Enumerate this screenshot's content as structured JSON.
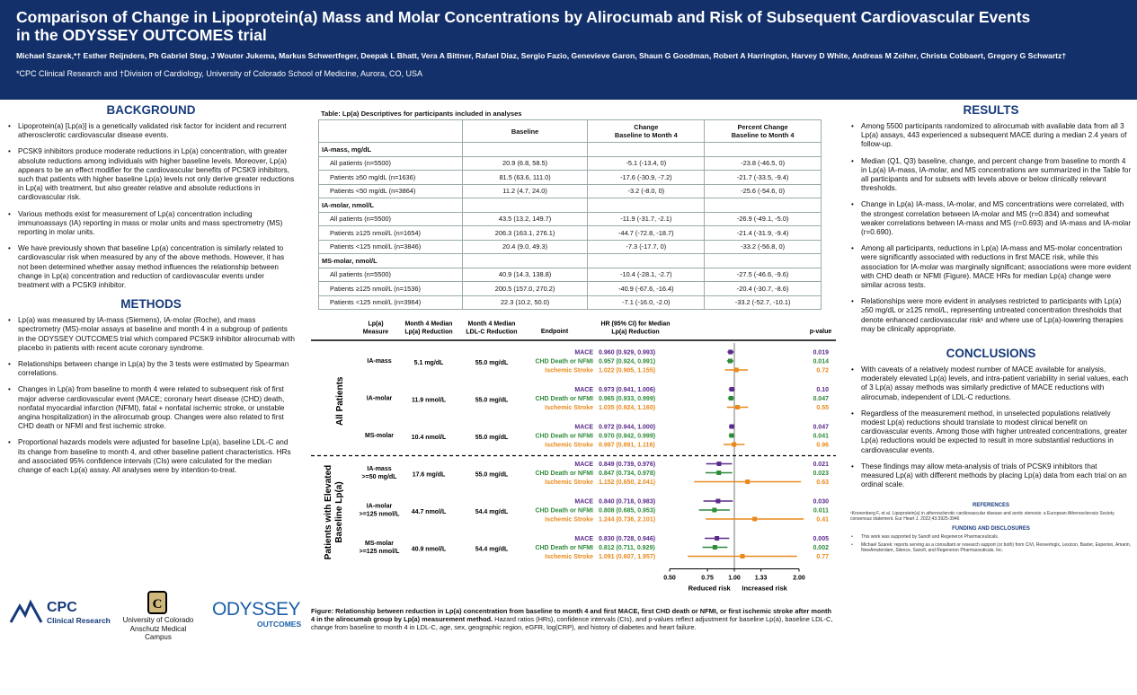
{
  "header": {
    "title_line1": "Comparison of Change in Lipoprotein(a) Mass and Molar Concentrations by Alirocumab and Risk of Subsequent Cardiovascular Events",
    "title_line2": "in the ODYSSEY OUTCOMES trial",
    "authors": "Michael Szarek,*† Esther Reijnders, Ph Gabriel Steg, J Wouter Jukema, Markus Schwertfeger, Deepak L Bhatt, Vera A Bittner, Rafael Diaz, Sergio Fazio, Genevieve Garon, Shaun G Goodman, Robert A Harrington, Harvey D White, Andreas M Zeiher, Christa Cobbaert, Gregory G Schwartz†",
    "affiliation": "*CPC Clinical Research and †Division of Cardiology, University of Colorado School of Medicine, Aurora, CO, USA"
  },
  "background": {
    "title": "BACKGROUND",
    "bullets": [
      "Lipoprotein(a) [Lp(a)] is a genetically validated risk factor for incident and recurrent atherosclerotic cardiovascular disease events.",
      "PCSK9 inhibitors produce moderate reductions in Lp(a) concentration, with greater absolute reductions among individuals with higher baseline levels. Moreover, Lp(a) appears to be an effect modifier for the cardiovascular benefits of PCSK9 inhibitors, such that patients with higher baseline Lp(a) levels not only derive greater reductions in Lp(a) with treatment, but also greater relative and absolute reductions in cardiovascular risk.",
      "Various methods exist for measurement of Lp(a) concentration including immunoassays (IA) reporting in mass or molar units and mass spectrometry (MS) reporting in molar units.",
      "We have previously shown that baseline Lp(a) concentration is similarly related to cardiovascular risk when measured by any of the above methods. However, it has not been determined whether assay method influences the relationship between change in Lp(a) concentration and reduction of cardiovascular events under treatment with a PCSK9 inhibitor."
    ]
  },
  "methods": {
    "title": "METHODS",
    "bullets": [
      "Lp(a) was measured by IA-mass (Siemens), IA-molar (Roche), and mass spectrometry (MS)-molar assays at baseline and month 4 in a subgroup of patients in the ODYSSEY OUTCOMES trial which compared PCSK9 inhibitor alirocumab with placebo in patients with recent acute coronary syndrome.",
      "Relationships between change in Lp(a) by the 3 tests were estimated by Spearman correlations.",
      "Changes in Lp(a) from baseline to month 4 were related to subsequent risk of first major adverse cardiovascular event (MACE; coronary heart disease (CHD) death, nonfatal myocardial infarction (NFMI), fatal + nonfatal ischemic stroke, or unstable angina hospitalization) in the alirocumab group. Changes were also related to first CHD death or NFMI and first ischemic stroke.",
      "Proportional hazards models were adjusted for baseline Lp(a), baseline LDL-C and its change from baseline to month 4, and other baseline patient characteristics. HRs and associated 95% confidence intervals (CIs) were calculated for the median change of each Lp(a) assay. All analyses were by intention-to-treat."
    ]
  },
  "logos": {
    "cpc": "CPC",
    "cpc_sub": "Clinical Research",
    "cu1": "University of Colorado",
    "cu2": "Anschutz Medical Campus",
    "odyssey": "ODYSSEY",
    "odyssey_sub": "OUTCOMES"
  },
  "table": {
    "title": "Table: Lp(a) Descriptives for participants included in analyses",
    "headers": [
      "",
      "Baseline",
      "Change\nBaseline to Month 4",
      "Percent Change\nBaseline to Month 4"
    ],
    "rows": [
      {
        "type": "grp",
        "label": "IA-mass, mg/dL"
      },
      {
        "type": "row",
        "label": "All patients (n=5500)",
        "baseline": "20.9 (6.8, 58.5)",
        "change": "-5.1 (-13.4, 0)",
        "pct": "-23.8 (-46.5, 0)"
      },
      {
        "type": "row",
        "label": "Patients ≥50 mg/dL (n=1636)",
        "baseline": "81.5 (63.6, 111.0)",
        "change": "-17.6 (-30.9, -7.2)",
        "pct": "-21.7 (-33.5, -9.4)"
      },
      {
        "type": "row",
        "label": "Patients <50 mg/dL (n=3864)",
        "baseline": "11.2 (4.7, 24.0)",
        "change": "-3.2 (-8.0, 0)",
        "pct": "-25.6 (-54.6, 0)"
      },
      {
        "type": "grp",
        "label": "IA-molar, nmol/L"
      },
      {
        "type": "row",
        "label": "All patients (n=5500)",
        "baseline": "43.5 (13.2, 149.7)",
        "change": "-11.9 (-31.7, -2.1)",
        "pct": "-26.9 (-49.1, -5.0)"
      },
      {
        "type": "row",
        "label": "Patients ≥125 nmol/L (n=1654)",
        "baseline": "206.3 (163.1, 276.1)",
        "change": "-44.7 (-72.8, -18.7)",
        "pct": "-21.4 (-31.9, -9.4)"
      },
      {
        "type": "row",
        "label": "Patients <125 nmol/L (n=3846)",
        "baseline": "20.4 (9.0, 49.3)",
        "change": "-7.3 (-17.7, 0)",
        "pct": "-33.2 (-56.8, 0)"
      },
      {
        "type": "grp",
        "label": "MS-molar, nmol/L"
      },
      {
        "type": "row",
        "label": "All patients (n=5500)",
        "baseline": "40.9 (14.3, 138.8)",
        "change": "-10.4 (-28.1, -2.7)",
        "pct": "-27.5 (-46.6, -9.6)"
      },
      {
        "type": "row",
        "label": "Patients ≥125 nmol/L (n=1536)",
        "baseline": "200.5 (157.0, 270.2)",
        "change": "-40.9 (-67.6, -16.4)",
        "pct": "-20.4 (-30.7, -8.6)"
      },
      {
        "type": "row",
        "label": "Patients <125 nmol/L (n=3964)",
        "baseline": "22.3 (10.2, 50.0)",
        "change": "-7.1 (-16.0, -2.0)",
        "pct": "-33.2 (-52.7, -10.1)"
      }
    ]
  },
  "forest": {
    "col_measure": "Lp(a)\nMeasure",
    "col_lpa": "Month 4 Median\nLp(a) Reduction",
    "col_ldl": "Month 4 Median\nLDL-C Reduction",
    "col_endpoint": "Endpoint",
    "col_hr": "HR (95% CI) for Median\nLp(a) Reduction",
    "col_p": "p-value",
    "group1": "All Patients",
    "group2": "Patients with Elevated\nBaseline Lp(a)",
    "xticks": [
      "0.50",
      "0.75",
      "1.00",
      "1.33",
      "2.00"
    ],
    "x_left_label": "Reduced risk",
    "x_right_label": "Increased risk",
    "colors": {
      "mace": "#5b2a8c",
      "chd": "#2e8b3a",
      "stroke": "#e8891c"
    },
    "blocks": [
      {
        "measure": "IA-mass",
        "lpa": "5.1 mg/dL",
        "ldl": "55.0 mg/dL",
        "rows": [
          {
            "ep": "MACE",
            "hr": 0.96,
            "lo": 0.929,
            "hi": 0.993,
            "txt": "0.960 (0.929, 0.993)",
            "p": "0.019"
          },
          {
            "ep": "CHD Death or NFMI",
            "hr": 0.957,
            "lo": 0.924,
            "hi": 0.991,
            "txt": "0.957 (0.924, 0.991)",
            "p": "0.014"
          },
          {
            "ep": "Ischemic Stroke",
            "hr": 1.022,
            "lo": 0.905,
            "hi": 1.155,
            "txt": "1.022 (0.905, 1.155)",
            "p": "0.72"
          }
        ]
      },
      {
        "measure": "IA-molar",
        "lpa": "11.9 nmol/L",
        "ldl": "55.0 mg/dL",
        "rows": [
          {
            "ep": "MACE",
            "hr": 0.973,
            "lo": 0.941,
            "hi": 1.006,
            "txt": "0.973 (0.941, 1.006)",
            "p": "0.10"
          },
          {
            "ep": "CHD Death or NFMI",
            "hr": 0.965,
            "lo": 0.933,
            "hi": 0.999,
            "txt": "0.965 (0.933, 0.999)",
            "p": "0.047"
          },
          {
            "ep": "Ischemic Stroke",
            "hr": 1.035,
            "lo": 0.924,
            "hi": 1.16,
            "txt": "1.035 (0.924, 1.160)",
            "p": "0.55"
          }
        ]
      },
      {
        "measure": "MS-molar",
        "lpa": "10.4 nmol/L",
        "ldl": "55.0 mg/dL",
        "rows": [
          {
            "ep": "MACE",
            "hr": 0.972,
            "lo": 0.944,
            "hi": 1.0,
            "txt": "0.972 (0.944, 1.000)",
            "p": "0.047"
          },
          {
            "ep": "CHD Death or NFMI",
            "hr": 0.97,
            "lo": 0.942,
            "hi": 0.999,
            "txt": "0.970 (0.942, 0.999)",
            "p": "0.041"
          },
          {
            "ep": "Ischemic Stroke",
            "hr": 0.997,
            "lo": 0.891,
            "hi": 1.116,
            "txt": "0.997 (0.891, 1.116)",
            "p": "0.96"
          }
        ]
      },
      {
        "measure": "IA-mass\n>=50 mg/dL",
        "lpa": "17.6 mg/dL",
        "ldl": "55.0 mg/dL",
        "rows": [
          {
            "ep": "MACE",
            "hr": 0.849,
            "lo": 0.739,
            "hi": 0.976,
            "txt": "0.849 (0.739, 0.976)",
            "p": "0.021"
          },
          {
            "ep": "CHD Death or NFMI",
            "hr": 0.847,
            "lo": 0.734,
            "hi": 0.978,
            "txt": "0.847 (0.734, 0.978)",
            "p": "0.023"
          },
          {
            "ep": "Ischemic Stroke",
            "hr": 1.152,
            "lo": 0.65,
            "hi": 2.041,
            "txt": "1.152 (0.650, 2.041)",
            "p": "0.63"
          }
        ]
      },
      {
        "measure": "IA-molar\n>=125 nmol/L",
        "lpa": "44.7 nmol/L",
        "ldl": "54.4 mg/dL",
        "rows": [
          {
            "ep": "MACE",
            "hr": 0.84,
            "lo": 0.718,
            "hi": 0.983,
            "txt": "0.840 (0.718, 0.983)",
            "p": "0.030"
          },
          {
            "ep": "CHD Death or NFMI",
            "hr": 0.808,
            "lo": 0.685,
            "hi": 0.953,
            "txt": "0.808 (0.685, 0.953)",
            "p": "0.011"
          },
          {
            "ep": "Ischemic Stroke",
            "hr": 1.244,
            "lo": 0.736,
            "hi": 2.101,
            "txt": "1.244 (0.736, 2.101)",
            "p": "0.41"
          }
        ]
      },
      {
        "measure": "MS-molar\n>=125 nmol/L",
        "lpa": "40.9 nmol/L",
        "ldl": "54.4 mg/dL",
        "rows": [
          {
            "ep": "MACE",
            "hr": 0.83,
            "lo": 0.728,
            "hi": 0.946,
            "txt": "0.830 (0.728, 0.946)",
            "p": "0.005"
          },
          {
            "ep": "CHD Death or NFMI",
            "hr": 0.812,
            "lo": 0.711,
            "hi": 0.929,
            "txt": "0.812 (0.711, 0.929)",
            "p": "0.002"
          },
          {
            "ep": "Ischemic Stroke",
            "hr": 1.091,
            "lo": 0.607,
            "hi": 1.957,
            "txt": "1.091 (0.607, 1.957)",
            "p": "0.77"
          }
        ]
      }
    ]
  },
  "caption": {
    "bold": "Figure: Relationship between reduction in Lp(a) concentration from baseline to month 4 and first MACE, first CHD death or NFMI, or first ischemic stroke after month 4 in the alirocumab group by Lp(a) measurement method.",
    "rest": " Hazard ratios (HRs), confidence intervals (CIs), and p-values reflect adjustment for baseline Lp(a), baseline LDL-C, change from baseline to month 4 in LDL-C, age, sex, geographic region, eGFR, log(CRP), and history of diabetes and heart failure."
  },
  "results": {
    "title": "RESULTS",
    "bullets": [
      "Among 5500 participants randomized to alirocumab with available data from all 3 Lp(a) assays, 443 experienced a subsequent MACE during a median 2.4 years of follow-up.",
      "Median (Q1, Q3) baseline, change, and percent change from baseline to month 4 in Lp(a) IA-mass, IA-molar, and MS concentrations are summarized in the Table for all participants and for subsets with levels above or below clinically relevant thresholds.",
      "Change in Lp(a) IA-mass, IA-molar, and MS concentrations were correlated, with the strongest correlation between IA-molar and MS (r=0.834) and somewhat weaker correlations between IA-mass and MS (r=0.693) and IA-mass and IA-molar (r=0.690).",
      "Among all participants, reductions in Lp(a) IA-mass and MS-molar concentration were significantly associated with reductions in first MACE risk, while this association for IA-molar was marginally significant; associations were more evident with CHD death or NFMI (Figure). MACE HRs for median Lp(a) change were similar across tests.",
      "Relationships were more evident in analyses restricted to participants with Lp(a) ≥50 mg/dL or ≥125 nmol/L, representing untreated concentration thresholds that denote enhanced cardiovascular risk¹ and where use of Lp(a)-lowering therapies may be clinically appropriate."
    ]
  },
  "conclusions": {
    "title": "CONCLUSIONS",
    "bullets": [
      "With caveats of a relatively modest number of MACE available for analysis, moderately elevated Lp(a) levels, and intra-patient variability in serial values, each of 3 Lp(a) assay methods was similarly predictive of MACE reductions with alirocumab, independent of LDL-C reductions.",
      "Regardless of the measurement method, in unselected populations relatively modest Lp(a) reductions should translate to modest clinical benefit on cardiovascular events. Among those with higher untreated concentrations, greater Lp(a) reductions would be expected to result in more substantial reductions in cardiovascular events.",
      "These findings may allow meta-analysis of trials of PCSK9 inhibitors that measured Lp(a) with different methods by placing Lp(a) data from each trial on an ordinal scale."
    ]
  },
  "references": {
    "title": "REFERENCES",
    "text": "¹Kronenberg F, et al. Lipoprotein(a) in atherosclerotic cardiovascular disease and aortic stenosis: a European Atherosclerosis Society consensus statement. Eur Heart J. 2022;43:3925-3946"
  },
  "funding": {
    "title": "FUNDING AND DISCLOSURES",
    "items": [
      "This work was supported by Sanofi and Regeneron Pharmaceuticals.",
      "Michael Szarek: reports serving as a consultant or research support (or both) from CiVi, Resverlogix, Lexicon, Baxter, Esperion, Amarin, NewAmsterdam, Silence, Sanofi, and Regeneron Pharmaceuticals, Inc."
    ]
  }
}
